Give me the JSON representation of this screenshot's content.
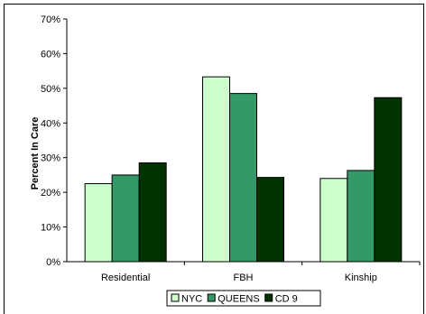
{
  "chart_data": {
    "type": "bar",
    "ylabel": "Percent In Care",
    "xlabel": "",
    "categories": [
      "Residential",
      "FBH",
      "Kinship"
    ],
    "ylim": [
      0,
      70
    ],
    "y_ticks": [
      "0%",
      "10%",
      "20%",
      "30%",
      "40%",
      "50%",
      "60%",
      "70%"
    ],
    "series": [
      {
        "name": "NYC",
        "values": [
          22.5,
          53.3,
          24.0
        ],
        "color": "#ccffcc"
      },
      {
        "name": "QUEENS",
        "values": [
          25.0,
          48.5,
          26.3
        ],
        "color": "#339966"
      },
      {
        "name": "CD 9",
        "values": [
          28.5,
          24.3,
          47.3
        ],
        "color": "#003300"
      }
    ],
    "legend_position": "bottom",
    "grid": false
  }
}
